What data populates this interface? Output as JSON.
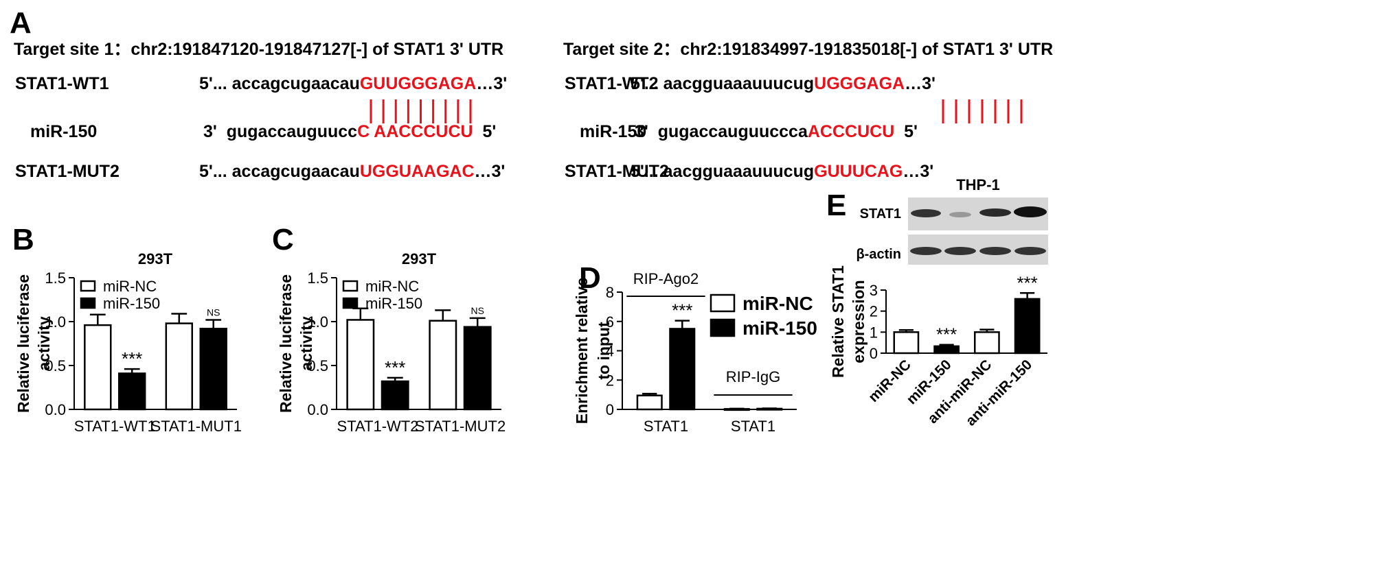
{
  "sequence_panel": {
    "panel_label": "A",
    "sites": [
      {
        "title": "Target site 1：chr2:191847120-191847127[-] of STAT1 3' UTR",
        "rows": [
          {
            "name": "STAT1-WT1",
            "prefix": "5'... accagcugaacau",
            "site": "GUUGGGAGA",
            "suffix": "…3'"
          },
          {
            "name": "miR-150",
            "prefix": "3'  gugaccauguucc",
            "site": "C AACCCUCU",
            "suffix": "  5'"
          },
          {
            "name": "STAT1-MUT2",
            "prefix": "5'... accagcugaacau",
            "site": "UGGUAAGAC",
            "suffix": "…3'"
          }
        ]
      },
      {
        "title": "Target site 2：chr2:191834997-191835018[-] of STAT1 3' UTR",
        "rows": [
          {
            "name": "STAT1-WT2",
            "prefix": "5'... aacgguaaauuucug",
            "site": "UGGGAGA",
            "suffix": "…3'"
          },
          {
            "name": "miR-150",
            "prefix": "3'  gugaccauguuccca",
            "site": "ACCCUCU",
            "suffix": "  5'"
          },
          {
            "name": "STAT1-MUT2",
            "prefix": "5'... aacgguaaauuucug",
            "site": "GUUUCAG",
            "suffix": "…3'"
          }
        ]
      }
    ]
  },
  "chart_data": [
    {
      "type": "bar",
      "panel_label": "B",
      "title": "293T",
      "ylabel": [
        "Relative luciferase",
        "activity"
      ],
      "categories": [
        "STAT1-WT1",
        "STAT1-MUT1"
      ],
      "series": [
        {
          "name": "miR-NC",
          "color": "#ffffff",
          "values": [
            0.96,
            0.98
          ],
          "errors": [
            0.12,
            0.11
          ],
          "annotations": [
            null,
            null
          ]
        },
        {
          "name": "miR-150",
          "color": "#000000",
          "values": [
            0.41,
            0.92
          ],
          "errors": [
            0.05,
            0.1
          ],
          "annotations": [
            "***",
            "NS"
          ]
        }
      ],
      "ylim": [
        0,
        1.5
      ],
      "yticks": [
        {
          "value": 0,
          "label": "0.0"
        },
        0.5,
        {
          "value": 1,
          "label": "1.0"
        },
        1.5
      ],
      "legend": "upper left"
    },
    {
      "type": "bar",
      "panel_label": "C",
      "title": "293T",
      "ylabel": [
        "Relative luciferase",
        "activity"
      ],
      "categories": [
        "STAT1-WT2",
        "STAT1-MUT2"
      ],
      "series": [
        {
          "name": "miR-NC",
          "color": "#ffffff",
          "values": [
            1.02,
            1.01
          ],
          "errors": [
            0.13,
            0.12
          ],
          "annotations": [
            null,
            null
          ]
        },
        {
          "name": "miR-150",
          "color": "#000000",
          "values": [
            0.32,
            0.94
          ],
          "errors": [
            0.04,
            0.1
          ],
          "annotations": [
            "***",
            "NS"
          ]
        }
      ],
      "ylim": [
        0,
        1.5
      ],
      "yticks": [
        {
          "value": 0,
          "label": "0.0"
        },
        0.5,
        {
          "value": 1,
          "label": "1.0"
        },
        1.5
      ],
      "legend": "upper left"
    },
    {
      "type": "bar",
      "panel_label": "D",
      "ylabel": [
        "Enrichment relative",
        "to input"
      ],
      "categories": [
        "STAT1",
        "STAT1"
      ],
      "group_labels": [
        "RIP-Ago2",
        "RIP-IgG"
      ],
      "series": [
        {
          "name": "miR-NC",
          "color": "#ffffff",
          "values": [
            0.95,
            0.03
          ],
          "errors": [
            0.12,
            0.02
          ],
          "annotations": [
            null,
            null
          ]
        },
        {
          "name": "miR-150",
          "color": "#000000",
          "values": [
            5.5,
            0.05
          ],
          "errors": [
            0.55,
            0.02
          ],
          "annotations": [
            "***",
            null
          ]
        }
      ],
      "ylim": [
        0,
        8
      ],
      "yticks": [
        0,
        2,
        4,
        6,
        8
      ],
      "legend": "right"
    },
    {
      "type": "bar",
      "panel_label": "E",
      "title": "THP-1",
      "blot_labels": [
        "STAT1",
        "β-actin"
      ],
      "ylabel": [
        "Relative STAT1",
        "expression"
      ],
      "categories": [
        "miR-NC",
        "miR-150",
        "anti-miR-NC",
        "anti-miR-150"
      ],
      "x_label_rotation": -45,
      "series": [
        {
          "colors": [
            "#ffffff",
            "#000000",
            "#ffffff",
            "#000000"
          ],
          "values": [
            1.0,
            0.33,
            1.0,
            2.58
          ],
          "errors": [
            0.1,
            0.07,
            0.12,
            0.28
          ],
          "annotations": [
            null,
            "***",
            null,
            "***"
          ]
        }
      ],
      "ylim": [
        0,
        3
      ],
      "yticks": [
        0,
        1,
        2,
        3
      ]
    }
  ]
}
